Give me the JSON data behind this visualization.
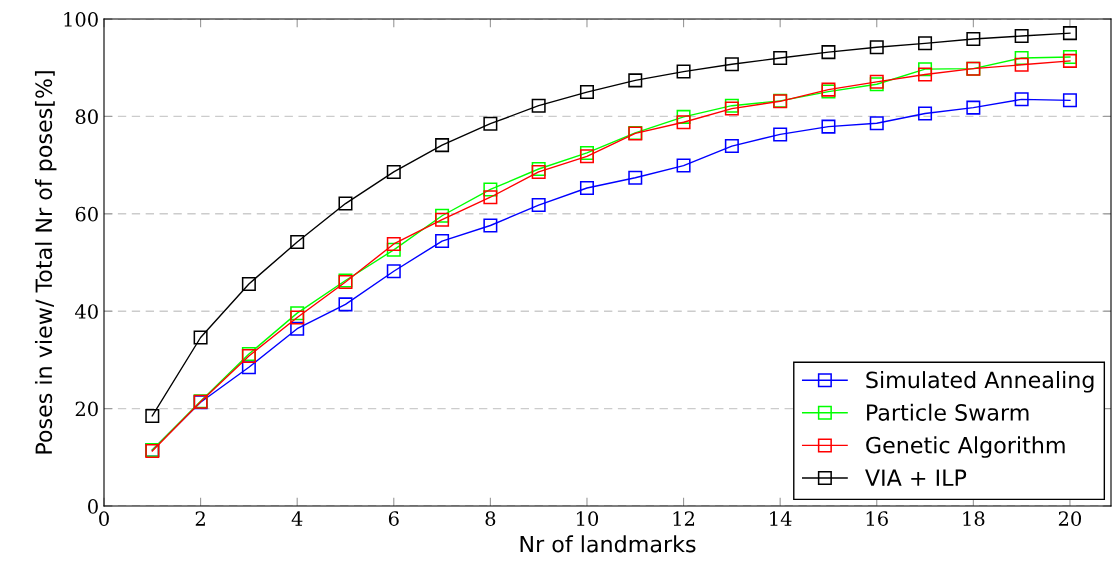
{
  "chart_data": {
    "type": "line",
    "xlabel": "Nr of landmarks",
    "ylabel": "Poses in view/ Total Nr of poses[%]",
    "x": [
      1,
      2,
      3,
      4,
      5,
      6,
      7,
      8,
      9,
      10,
      11,
      12,
      13,
      14,
      15,
      16,
      17,
      18,
      19,
      20
    ],
    "xlim": [
      0,
      20.85
    ],
    "xticks": [
      0,
      2,
      4,
      6,
      8,
      10,
      12,
      14,
      16,
      18,
      20
    ],
    "ylim": [
      0,
      100
    ],
    "yticks": [
      0,
      20,
      40,
      60,
      80,
      100
    ],
    "grid": "y",
    "legend": "bottom right",
    "marker": "square",
    "line_style": "solid",
    "series": [
      {
        "name": "Simulated Annealing",
        "color": "#0000ff",
        "values": [
          11.5,
          21.3,
          28.5,
          36.4,
          41.4,
          48.2,
          54.4,
          57.6,
          61.8,
          65.3,
          67.4,
          69.9,
          73.9,
          76.3,
          77.9,
          78.6,
          80.6,
          81.8,
          83.5,
          83.3
        ]
      },
      {
        "name": "Particle Swarm",
        "color": "#00ff00",
        "values": [
          11.5,
          21.5,
          31.2,
          39.6,
          46.3,
          52.6,
          59.6,
          65.0,
          69.2,
          72.5,
          76.6,
          79.9,
          82.2,
          83.2,
          85.1,
          86.6,
          89.7,
          89.8,
          92.0,
          92.2
        ]
      },
      {
        "name": "Genetic Algorithm",
        "color": "#ff0000",
        "values": [
          11.3,
          21.4,
          30.8,
          38.7,
          46.0,
          53.8,
          58.8,
          63.4,
          68.6,
          71.8,
          76.5,
          78.8,
          81.6,
          83.1,
          85.5,
          87.1,
          88.6,
          89.8,
          90.6,
          91.4
        ]
      },
      {
        "name": "VIA + ILP",
        "color": "#000000",
        "values": [
          18.5,
          34.6,
          45.6,
          54.2,
          62.1,
          68.6,
          74.1,
          78.5,
          82.2,
          85.0,
          87.4,
          89.2,
          90.7,
          92.0,
          93.2,
          94.2,
          95.0,
          95.9,
          96.5,
          97.1
        ]
      }
    ]
  }
}
